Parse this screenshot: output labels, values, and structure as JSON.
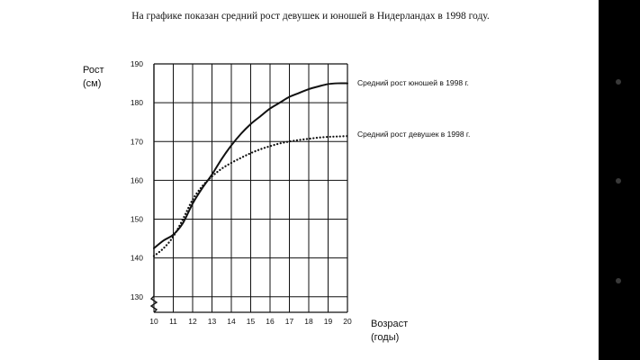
{
  "page": {
    "caption": "На графике показан средний рост девушек и юношей в Нидерландах в 1998 году."
  },
  "colors": {
    "page_bg": "#ffffff",
    "outer_bg": "#000000",
    "line": "#111111"
  },
  "chart_data": {
    "type": "line",
    "title": "",
    "ylabel_lines": [
      "Рост",
      "(см)"
    ],
    "xlabel_lines": [
      "Возраст",
      "(годы)"
    ],
    "xlim": [
      10,
      20
    ],
    "ylim": [
      126,
      190
    ],
    "xticks": [
      10,
      11,
      12,
      13,
      14,
      15,
      16,
      17,
      18,
      19,
      20
    ],
    "yticks": [
      130,
      140,
      150,
      160,
      170,
      180,
      190
    ],
    "grid": true,
    "axis_break": "y-bottom",
    "series": [
      {
        "name": "Средний рост юношей в 1998 г.",
        "style": "solid",
        "x": [
          10,
          10.5,
          11,
          11.5,
          12,
          12.5,
          13,
          13.5,
          14,
          14.5,
          15,
          15.5,
          16,
          16.5,
          17,
          17.5,
          18,
          18.5,
          19,
          19.5,
          20
        ],
        "y": [
          142.5,
          144.5,
          146,
          149,
          154,
          158,
          161.5,
          165.5,
          169,
          172,
          174.5,
          176.5,
          178.5,
          180,
          181.5,
          182.5,
          183.5,
          184.2,
          184.8,
          185,
          185
        ]
      },
      {
        "name": "Средний рост девушек в 1998 г.",
        "style": "dotted",
        "x": [
          10,
          10.5,
          11,
          11.5,
          12,
          12.5,
          13,
          13.5,
          14,
          14.5,
          15,
          15.5,
          16,
          16.5,
          17,
          17.5,
          18,
          18.5,
          19,
          19.5,
          20
        ],
        "y": [
          140.5,
          142.5,
          145.5,
          150,
          155,
          158.5,
          161,
          163,
          164.5,
          165.8,
          167,
          168,
          168.8,
          169.5,
          170,
          170.4,
          170.7,
          171,
          171.2,
          171.3,
          171.4
        ]
      }
    ]
  }
}
